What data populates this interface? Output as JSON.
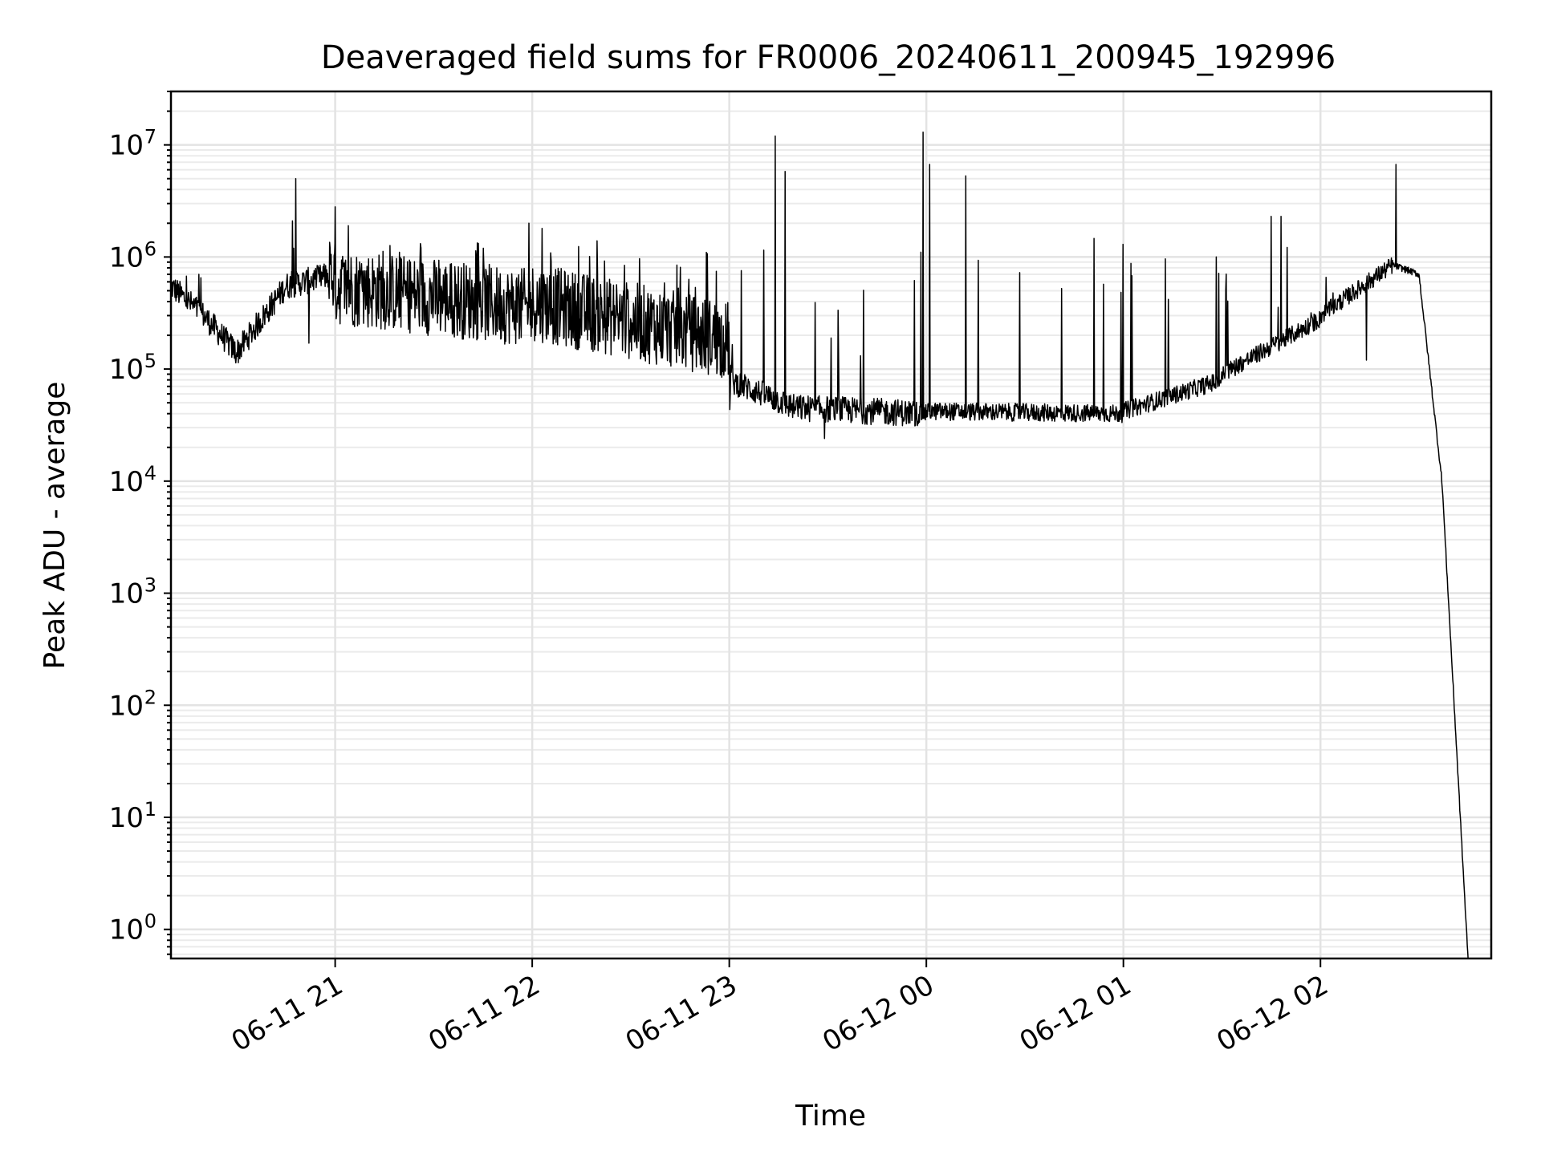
{
  "chart_data": {
    "type": "line",
    "title": "Deaveraged field sums for FR0006_20240611_200945_192996",
    "xlabel": "Time",
    "ylabel": "Peak ADU - average",
    "yscale": "log",
    "ylim": [
      0.55,
      30000000
    ],
    "xlim": [
      "2024-06-11 20:10:00",
      "2024-06-12 02:52:00"
    ],
    "x_ticks": [
      {
        "t": "2024-06-11 21:00",
        "label": "06-11 21"
      },
      {
        "t": "2024-06-11 22:00",
        "label": "06-11 22"
      },
      {
        "t": "2024-06-11 23:00",
        "label": "06-11 23"
      },
      {
        "t": "2024-06-12 00:00",
        "label": "06-12 00"
      },
      {
        "t": "2024-06-12 01:00",
        "label": "06-12 01"
      },
      {
        "t": "2024-06-12 02:00",
        "label": "06-12 02"
      }
    ],
    "y_ticks": [
      {
        "exp": 0,
        "base": "10",
        "sup": "0"
      },
      {
        "exp": 1,
        "base": "10",
        "sup": "1"
      },
      {
        "exp": 2,
        "base": "10",
        "sup": "2"
      },
      {
        "exp": 3,
        "base": "10",
        "sup": "3"
      },
      {
        "exp": 4,
        "base": "10",
        "sup": "4"
      },
      {
        "exp": 5,
        "base": "10",
        "sup": "5"
      },
      {
        "exp": 6,
        "base": "10",
        "sup": "6"
      },
      {
        "exp": 7,
        "base": "10",
        "sup": "7"
      }
    ],
    "grid": true,
    "line_color": "#000000",
    "baseline_segments": [
      {
        "from": "2024-06-11 20:10",
        "to": "2024-06-11 20:20",
        "start": 550000,
        "end": 300000
      },
      {
        "from": "2024-06-11 20:20",
        "to": "2024-06-11 20:30",
        "start": 300000,
        "end": 140000
      },
      {
        "from": "2024-06-11 20:30",
        "to": "2024-06-11 20:45",
        "start": 140000,
        "end": 550000
      },
      {
        "from": "2024-06-11 20:45",
        "to": "2024-06-11 21:00",
        "start": 550000,
        "end": 700000
      },
      {
        "from": "2024-06-11 21:00",
        "to": "2024-06-11 22:00",
        "start": 550000,
        "end": 350000
      },
      {
        "from": "2024-06-11 22:00",
        "to": "2024-06-11 23:00",
        "start": 400000,
        "end": 180000
      },
      {
        "from": "2024-06-11 23:00",
        "to": "2024-06-11 23:20",
        "start": 80000,
        "end": 45000
      },
      {
        "from": "2024-06-11 23:20",
        "to": "2024-06-12 00:00",
        "start": 45000,
        "end": 40000
      },
      {
        "from": "2024-06-12 00:00",
        "to": "2024-06-12 01:00",
        "start": 42000,
        "end": 40000
      },
      {
        "from": "2024-06-12 01:00",
        "to": "2024-06-12 01:30",
        "start": 42000,
        "end": 80000
      },
      {
        "from": "2024-06-12 01:30",
        "to": "2024-06-12 02:00",
        "start": 90000,
        "end": 280000
      },
      {
        "from": "2024-06-12 02:00",
        "to": "2024-06-12 02:22",
        "start": 300000,
        "end": 850000
      },
      {
        "from": "2024-06-12 02:22",
        "to": "2024-06-12 02:30",
        "start": 850000,
        "end": 700000
      },
      {
        "from": "2024-06-12 02:30",
        "to": "2024-06-12 02:37",
        "start": 700000,
        "end": 10000
      },
      {
        "from": "2024-06-12 02:37",
        "to": "2024-06-12 02:45",
        "start": 10000,
        "end": 0.5
      }
    ],
    "spikes": [
      {
        "t": "2024-06-11 20:48",
        "value": 5000000
      },
      {
        "t": "2024-06-11 20:47",
        "value": 2100000
      },
      {
        "t": "2024-06-11 21:00",
        "value": 2800000
      },
      {
        "t": "2024-06-11 21:04",
        "value": 1900000
      },
      {
        "t": "2024-06-11 21:59",
        "value": 2000000
      },
      {
        "t": "2024-06-11 22:03",
        "value": 1800000
      },
      {
        "t": "2024-06-11 23:14",
        "value": 12000000
      },
      {
        "t": "2024-06-11 23:17",
        "value": 5800000
      },
      {
        "t": "2024-06-11 23:59",
        "value": 13000000
      },
      {
        "t": "2024-06-12 00:01",
        "value": 6700000
      },
      {
        "t": "2024-06-12 00:12",
        "value": 5300000
      },
      {
        "t": "2024-06-12 01:45",
        "value": 2300000
      },
      {
        "t": "2024-06-12 01:48",
        "value": 2300000
      },
      {
        "t": "2024-06-12 02:23",
        "value": 6700000
      }
    ],
    "dips": [
      {
        "t": "2024-06-11 20:52",
        "value": 170000
      },
      {
        "t": "2024-06-11 23:29",
        "value": 24000
      },
      {
        "t": "2024-06-12 02:14",
        "value": 120000
      }
    ]
  }
}
